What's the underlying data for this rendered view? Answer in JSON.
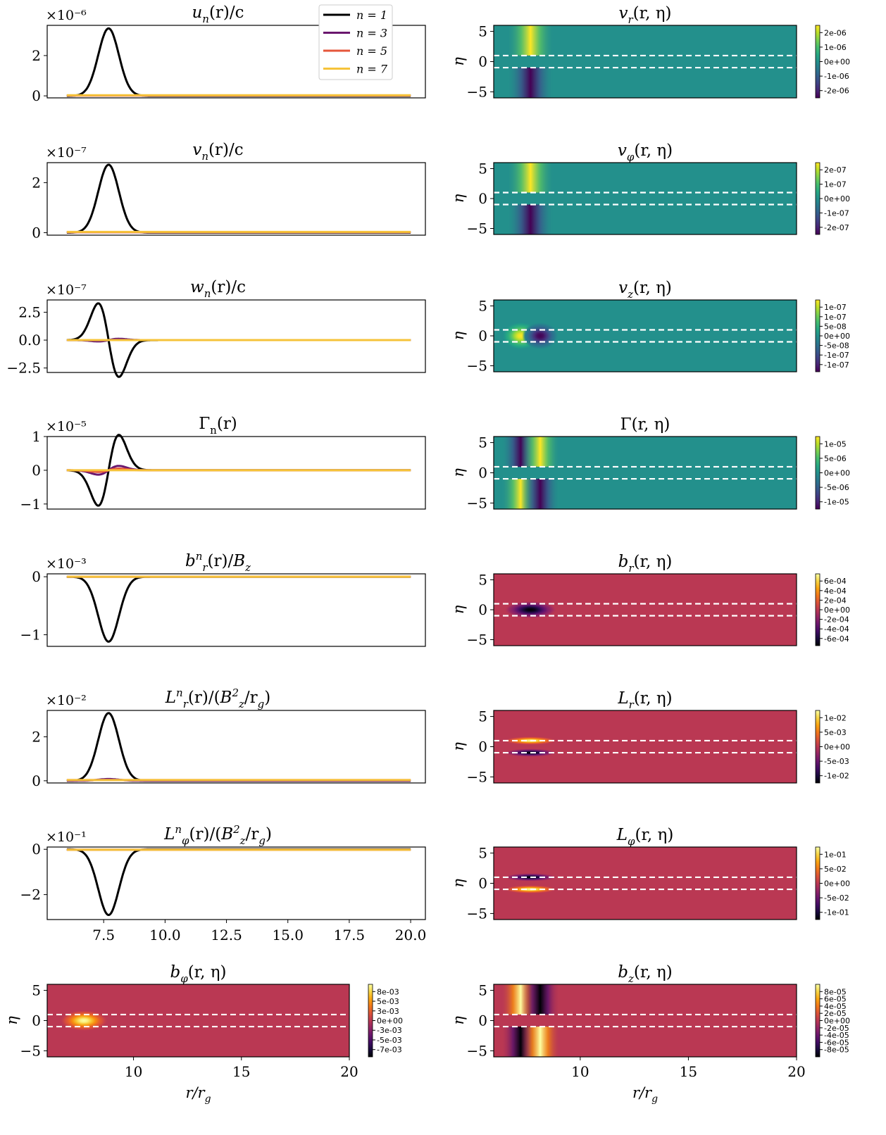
{
  "figure": {
    "colors": {
      "line_n1": "#000000",
      "line_n3": "#6a176e",
      "line_n5": "#e5563a",
      "line_n7": "#f6c33a",
      "dashed": "#ffffff",
      "axes": "#000000"
    },
    "legend": {
      "placement": "upper-right of first panel",
      "entries": [
        "n = 1",
        "n = 3",
        "n = 5",
        "n = 7"
      ]
    },
    "shared_xlabel": "r/r_g",
    "eta_label": "η"
  },
  "chart_data": [
    {
      "type": "line",
      "id": "u",
      "title": "u_n(r)/c",
      "title_parts": {
        "base": "u",
        "sub": "n",
        "rest": "(r)/c"
      },
      "multiplier": "×10⁻⁶",
      "xlim": [
        5.2,
        20.6
      ],
      "ylim": [
        -0.1,
        3.5
      ],
      "yticks": [
        0,
        2
      ],
      "ytick_labels": [
        "0",
        "2"
      ],
      "xticks": [],
      "x_tick_labels_shown": false,
      "series": [
        {
          "name": "n = 1",
          "shape": "gaussian",
          "amplitude": 3.35,
          "center": 7.7,
          "width": 0.42,
          "offset": 0.0
        },
        {
          "name": "n = 3",
          "shape": "flat",
          "value": 0.02
        },
        {
          "name": "n = 5",
          "shape": "flat",
          "value": 0.02
        },
        {
          "name": "n = 7",
          "shape": "flat",
          "value": 0.03
        }
      ]
    },
    {
      "type": "line",
      "id": "v",
      "title": "v_n(r)/c",
      "title_parts": {
        "base": "v",
        "sub": "n",
        "rest": "(r)/c"
      },
      "multiplier": "×10⁻⁷",
      "xlim": [
        5.2,
        20.6
      ],
      "ylim": [
        -0.1,
        2.8
      ],
      "yticks": [
        0,
        2
      ],
      "ytick_labels": [
        "0",
        "2"
      ],
      "xticks": [],
      "x_tick_labels_shown": false,
      "series": [
        {
          "name": "n = 1",
          "shape": "gaussian",
          "amplitude": 2.72,
          "center": 7.7,
          "width": 0.42,
          "offset": 0.0
        },
        {
          "name": "n = 3",
          "shape": "flat",
          "value": 0.02
        },
        {
          "name": "n = 5",
          "shape": "flat",
          "value": 0.02
        },
        {
          "name": "n = 7",
          "shape": "flat",
          "value": 0.03
        }
      ]
    },
    {
      "type": "line",
      "id": "w",
      "title": "w_n(r)/c",
      "title_parts": {
        "base": "w",
        "sub": "n",
        "rest": "(r)/c"
      },
      "multiplier": "×10⁻⁷",
      "xlim": [
        5.2,
        20.6
      ],
      "ylim": [
        -2.9,
        3.6
      ],
      "yticks": [
        2.5,
        0.0,
        -2.5
      ],
      "ytick_labels": [
        "2.5",
        "0.0",
        "−2.5"
      ],
      "xticks": [],
      "x_tick_labels_shown": false,
      "series": [
        {
          "name": "n = 1",
          "shape": "dgauss",
          "amplitude": 3.3,
          "center": 7.7,
          "width": 0.42
        },
        {
          "name": "n = 3",
          "shape": "dgauss",
          "amplitude": -0.12,
          "center": 7.7,
          "width": 0.42
        },
        {
          "name": "n = 5",
          "shape": "flat",
          "value": 0.0
        },
        {
          "name": "n = 7",
          "shape": "flat",
          "value": 0.0
        }
      ]
    },
    {
      "type": "line",
      "id": "gamma",
      "title": "Γ_n(r)",
      "title_parts": {
        "base": "Γ",
        "sub": "n",
        "rest": "(r)",
        "upright": true
      },
      "multiplier": "×10⁻⁵",
      "xlim": [
        5.2,
        20.6
      ],
      "ylim": [
        -1.15,
        1.0
      ],
      "yticks": [
        1,
        0,
        -1
      ],
      "ytick_labels": [
        "1",
        "0",
        "−1"
      ],
      "xticks": [],
      "x_tick_labels_shown": false,
      "series": [
        {
          "name": "n = 1",
          "shape": "dgauss",
          "amplitude": -1.05,
          "center": 7.7,
          "width": 0.42
        },
        {
          "name": "n = 3",
          "shape": "dgauss",
          "amplitude": -0.13,
          "center": 7.7,
          "width": 0.42
        },
        {
          "name": "n = 5",
          "shape": "dgauss",
          "amplitude": -0.05,
          "center": 7.7,
          "width": 0.42
        },
        {
          "name": "n = 7",
          "shape": "flat",
          "value": 0.0
        }
      ]
    },
    {
      "type": "line",
      "id": "br",
      "title": "b_r^n(r)/B_z",
      "title_parts": {
        "base": "b",
        "sub": "r",
        "sup": "n",
        "rest": "(r)/",
        "base2": "B",
        "sub2": "z"
      },
      "multiplier": "×10⁻³",
      "xlim": [
        5.2,
        20.6
      ],
      "ylim": [
        -1.2,
        0.05
      ],
      "yticks": [
        0,
        -1
      ],
      "ytick_labels": [
        "0",
        "−1"
      ],
      "xticks": [],
      "x_tick_labels_shown": false,
      "series": [
        {
          "name": "n = 1",
          "shape": "gaussian",
          "amplitude": -1.12,
          "center": 7.7,
          "width": 0.42,
          "offset": 0.0
        },
        {
          "name": "n = 3",
          "shape": "flat",
          "value": 0.0
        },
        {
          "name": "n = 5",
          "shape": "flat",
          "value": 0.0
        },
        {
          "name": "n = 7",
          "shape": "flat",
          "value": 0.0
        }
      ]
    },
    {
      "type": "line",
      "id": "Lr",
      "title": "L_r^n(r)/(B_z^2/r_g)",
      "title_parts": {
        "base": "L",
        "sub": "r",
        "sup": "n",
        "rest": "(r)/(",
        "base2": "B",
        "sub2": "z",
        "sup2": "2",
        "rest2": "/r",
        "sub3": "g",
        "rest3": ")"
      },
      "multiplier": "×10⁻²",
      "xlim": [
        5.2,
        20.6
      ],
      "ylim": [
        -0.1,
        3.2
      ],
      "yticks": [
        0,
        2
      ],
      "ytick_labels": [
        "0",
        "2"
      ],
      "xticks": [],
      "x_tick_labels_shown": false,
      "series": [
        {
          "name": "n = 1",
          "shape": "gaussian",
          "amplitude": 3.08,
          "center": 7.7,
          "width": 0.42,
          "offset": 0.0
        },
        {
          "name": "n = 3",
          "shape": "gaussian",
          "amplitude": 0.08,
          "center": 7.7,
          "width": 0.42,
          "offset": 0.0
        },
        {
          "name": "n = 5",
          "shape": "flat",
          "value": 0.03
        },
        {
          "name": "n = 7",
          "shape": "flat",
          "value": 0.03
        }
      ]
    },
    {
      "type": "line",
      "id": "Lphi",
      "title": "L_φ^n(r)/(B_z^2/r_g)",
      "title_parts": {
        "base": "L",
        "sub": "φ",
        "sup": "n",
        "rest": "(r)/(",
        "base2": "B",
        "sub2": "z",
        "sup2": "2",
        "rest2": "/r",
        "sub3": "g",
        "rest3": ")"
      },
      "multiplier": "×10⁻¹",
      "xlim": [
        5.2,
        20.6
      ],
      "ylim": [
        -3.1,
        0.1
      ],
      "yticks": [
        0,
        -2
      ],
      "ytick_labels": [
        "0",
        "−2"
      ],
      "xticks": [
        7.5,
        10.0,
        12.5,
        15.0,
        17.5,
        20.0
      ],
      "xtick_labels": [
        "7.5",
        "10.0",
        "12.5",
        "15.0",
        "17.5",
        "20.0"
      ],
      "x_tick_labels_shown": true,
      "series": [
        {
          "name": "n = 1",
          "shape": "gaussian",
          "amplitude": -2.9,
          "center": 7.7,
          "width": 0.42,
          "offset": 0.0
        },
        {
          "name": "n = 3",
          "shape": "flat",
          "value": -0.02
        },
        {
          "name": "n = 5",
          "shape": "flat",
          "value": -0.02
        },
        {
          "name": "n = 7",
          "shape": "flat",
          "value": -0.02
        }
      ]
    },
    {
      "type": "heatmap",
      "id": "bphi",
      "title": "b_φ(r, η)",
      "title_parts": {
        "base": "b",
        "sub": "φ",
        "rest": "(r, η)"
      },
      "ylabel": "η",
      "xlabel": "r/r_g",
      "xlim": [
        6,
        20
      ],
      "ylim": [
        -6,
        6
      ],
      "yticks": [
        5,
        0,
        -5
      ],
      "ytick_labels": [
        "5",
        "0",
        "−5"
      ],
      "xticks": [
        10,
        15,
        20
      ],
      "xtick_labels": [
        "10",
        "15",
        "20"
      ],
      "colormap": "inferno",
      "dashed_lines_eta": [
        1,
        -1
      ],
      "pattern": "single",
      "background_level": 0.5,
      "blobs": [
        {
          "r": 7.7,
          "eta": 0,
          "sigma_r": 0.45,
          "sigma_eta": 1.4,
          "level": 1.0
        }
      ],
      "colorbar_ticks": [
        "8e-03",
        "5e-03",
        "3e-03",
        "0e+00",
        "-3e-03",
        "-5e-03",
        "-7e-03"
      ]
    },
    {
      "type": "heatmap",
      "id": "vr",
      "title": "v_r(r, η)",
      "title_parts": {
        "base": "v",
        "sub": "r",
        "rest": "(r, η)"
      },
      "ylabel": "η",
      "xlim": [
        6,
        20
      ],
      "ylim": [
        -6,
        6
      ],
      "yticks": [
        5,
        0,
        -5
      ],
      "ytick_labels": [
        "5",
        "0",
        "−5"
      ],
      "colormap": "viridis",
      "dashed_lines_eta": [
        1,
        -1
      ],
      "pattern": "bands",
      "background_level": 0.5,
      "bands": [
        {
          "r": 7.7,
          "sigma_r": 0.42,
          "eta_min": 1,
          "eta_max": 6,
          "level": 1.0
        },
        {
          "r": 7.7,
          "sigma_r": 0.42,
          "eta_min": -6,
          "eta_max": -1,
          "level": 0.0
        }
      ],
      "colorbar_ticks": [
        "2e-06",
        "1e-06",
        "0e+00",
        "-1e-06",
        "-2e-06"
      ]
    },
    {
      "type": "heatmap",
      "id": "vphi",
      "title": "v_φ(r, η)",
      "title_parts": {
        "base": "v",
        "sub": "φ",
        "rest": "(r, η)"
      },
      "ylabel": "η",
      "xlim": [
        6,
        20
      ],
      "ylim": [
        -6,
        6
      ],
      "yticks": [
        5,
        0,
        -5
      ],
      "ytick_labels": [
        "5",
        "0",
        "−5"
      ],
      "colormap": "viridis",
      "dashed_lines_eta": [
        1,
        -1
      ],
      "pattern": "bands",
      "background_level": 0.5,
      "bands": [
        {
          "r": 7.7,
          "sigma_r": 0.42,
          "eta_min": 1,
          "eta_max": 6,
          "level": 1.0
        },
        {
          "r": 7.7,
          "sigma_r": 0.42,
          "eta_min": -6,
          "eta_max": -1,
          "level": 0.0
        }
      ],
      "colorbar_ticks": [
        "2e-07",
        "1e-07",
        "0e+00",
        "-1e-07",
        "-2e-07"
      ]
    },
    {
      "type": "heatmap",
      "id": "vz",
      "title": "v_z(r, η)",
      "title_parts": {
        "base": "v",
        "sub": "z",
        "rest": "(r, η)"
      },
      "ylabel": "η",
      "xlim": [
        6,
        20
      ],
      "ylim": [
        -6,
        6
      ],
      "yticks": [
        5,
        0,
        -5
      ],
      "ytick_labels": [
        "5",
        "0",
        "−5"
      ],
      "colormap": "viridis",
      "dashed_lines_eta": [
        1,
        -1
      ],
      "pattern": "blobs",
      "background_level": 0.5,
      "blobs": [
        {
          "r": 7.25,
          "eta": 0,
          "sigma_r": 0.35,
          "sigma_eta": 1.9,
          "level": 1.0
        },
        {
          "r": 8.15,
          "eta": 0,
          "sigma_r": 0.35,
          "sigma_eta": 1.9,
          "level": 0.0
        }
      ],
      "colorbar_ticks": [
        "1e-07",
        "1e-07",
        "5e-08",
        "0e+00",
        "-5e-08",
        "-1e-07",
        "-1e-07"
      ]
    },
    {
      "type": "heatmap",
      "id": "Gamma2d",
      "title": "Γ(r, η)",
      "title_parts": {
        "base": "Γ",
        "rest": "(r, η)",
        "upright": true
      },
      "ylabel": "η",
      "xlim": [
        6,
        20
      ],
      "ylim": [
        -6,
        6
      ],
      "yticks": [
        5,
        0,
        -5
      ],
      "ytick_labels": [
        "5",
        "0",
        "−5"
      ],
      "colormap": "viridis",
      "dashed_lines_eta": [
        1,
        -1
      ],
      "pattern": "bands",
      "background_level": 0.5,
      "bands": [
        {
          "r": 7.25,
          "sigma_r": 0.35,
          "eta_min": 1,
          "eta_max": 6,
          "level": 0.0
        },
        {
          "r": 8.15,
          "sigma_r": 0.35,
          "eta_min": 1,
          "eta_max": 6,
          "level": 1.0
        },
        {
          "r": 7.25,
          "sigma_r": 0.35,
          "eta_min": -6,
          "eta_max": -1,
          "level": 1.0
        },
        {
          "r": 8.15,
          "sigma_r": 0.35,
          "eta_min": -6,
          "eta_max": -1,
          "level": 0.0
        }
      ],
      "colorbar_ticks": [
        "1e-05",
        "5e-06",
        "0e+00",
        "-5e-06",
        "-1e-05"
      ]
    },
    {
      "type": "heatmap",
      "id": "br2d",
      "title": "b_r(r, η)",
      "title_parts": {
        "base": "b",
        "sub": "r",
        "rest": "(r, η)"
      },
      "ylabel": "η",
      "xlim": [
        6,
        20
      ],
      "ylim": [
        -6,
        6
      ],
      "yticks": [
        5,
        0,
        -5
      ],
      "ytick_labels": [
        "5",
        "0",
        "−5"
      ],
      "colormap": "inferno",
      "dashed_lines_eta": [
        1,
        -1
      ],
      "pattern": "blobs",
      "background_level": 0.5,
      "blobs": [
        {
          "r": 7.7,
          "eta": 0,
          "sigma_r": 0.5,
          "sigma_eta": 1.2,
          "level": 0.0
        }
      ],
      "colorbar_ticks": [
        "6e-04",
        "4e-04",
        "2e-04",
        "0e+00",
        "-2e-04",
        "-4e-04",
        "-6e-04"
      ]
    },
    {
      "type": "heatmap",
      "id": "Lr2d",
      "title": "L_r(r, η)",
      "title_parts": {
        "base": "L",
        "sub": "r",
        "rest": "(r, η)"
      },
      "ylabel": "η",
      "xlim": [
        6,
        20
      ],
      "ylim": [
        -6,
        6
      ],
      "yticks": [
        5,
        0,
        -5
      ],
      "ytick_labels": [
        "5",
        "0",
        "−5"
      ],
      "colormap": "inferno",
      "dashed_lines_eta": [
        1,
        -1
      ],
      "pattern": "blobs",
      "background_level": 0.5,
      "blobs": [
        {
          "r": 7.7,
          "eta": 1.0,
          "sigma_r": 0.5,
          "sigma_eta": 0.55,
          "level": 1.0
        },
        {
          "r": 7.7,
          "eta": -1.0,
          "sigma_r": 0.5,
          "sigma_eta": 0.55,
          "level": 0.0
        }
      ],
      "colorbar_ticks": [
        "1e-02",
        "5e-03",
        "0e+00",
        "-5e-03",
        "-1e-02"
      ]
    },
    {
      "type": "heatmap",
      "id": "Lphi2d",
      "title": "L_φ(r, η)",
      "title_parts": {
        "base": "L",
        "sub": "φ",
        "rest": "(r, η)"
      },
      "ylabel": "η",
      "xlim": [
        6,
        20
      ],
      "ylim": [
        -6,
        6
      ],
      "yticks": [
        5,
        0,
        -5
      ],
      "ytick_labels": [
        "5",
        "0",
        "−5"
      ],
      "colormap": "inferno",
      "dashed_lines_eta": [
        1,
        -1
      ],
      "pattern": "blobs",
      "background_level": 0.5,
      "blobs": [
        {
          "r": 7.7,
          "eta": 1.0,
          "sigma_r": 0.5,
          "sigma_eta": 0.55,
          "level": 0.0
        },
        {
          "r": 7.7,
          "eta": -1.0,
          "sigma_r": 0.5,
          "sigma_eta": 0.55,
          "level": 1.0
        }
      ],
      "colorbar_ticks": [
        "1e-01",
        "5e-02",
        "0e+00",
        "-5e-02",
        "-1e-01"
      ]
    },
    {
      "type": "heatmap",
      "id": "bz2d",
      "title": "b_z(r, η)",
      "title_parts": {
        "base": "b",
        "sub": "z",
        "rest": "(r, η)"
      },
      "ylabel": "η",
      "xlabel": "r/r_g",
      "xlim": [
        6,
        20
      ],
      "ylim": [
        -6,
        6
      ],
      "yticks": [
        5,
        0,
        -5
      ],
      "ytick_labels": [
        "5",
        "0",
        "−5"
      ],
      "xticks": [
        10,
        15,
        20
      ],
      "xtick_labels": [
        "10",
        "15",
        "20"
      ],
      "colormap": "inferno",
      "dashed_lines_eta": [
        1,
        -1
      ],
      "pattern": "bands",
      "background_level": 0.5,
      "bands": [
        {
          "r": 7.25,
          "sigma_r": 0.35,
          "eta_min": 1,
          "eta_max": 6,
          "level": 1.0
        },
        {
          "r": 8.15,
          "sigma_r": 0.35,
          "eta_min": 1,
          "eta_max": 6,
          "level": 0.0
        },
        {
          "r": 7.25,
          "sigma_r": 0.35,
          "eta_min": -6,
          "eta_max": -1,
          "level": 0.0
        },
        {
          "r": 8.15,
          "sigma_r": 0.35,
          "eta_min": -6,
          "eta_max": -1,
          "level": 1.0
        }
      ],
      "colorbar_ticks": [
        "8e-05",
        "6e-05",
        "4e-05",
        "2e-05",
        "0e+00",
        "-2e-05",
        "-4e-05",
        "-6e-05",
        "-8e-05"
      ]
    }
  ]
}
